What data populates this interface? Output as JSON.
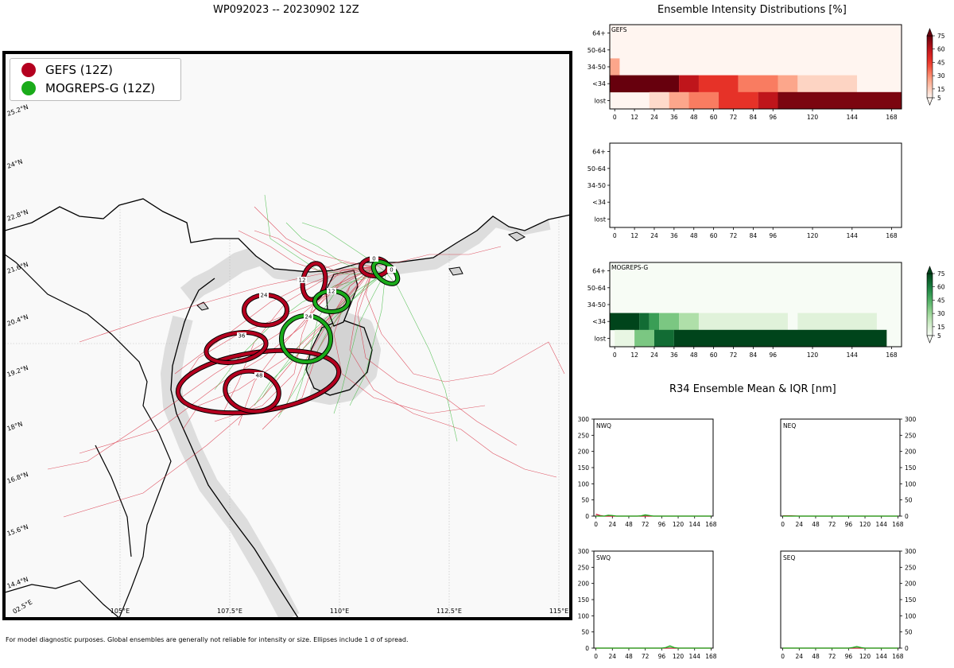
{
  "map": {
    "title": "WP092023 -- 20230902 12Z",
    "lon_labels": [
      "105°E",
      "107.5°E",
      "110°E",
      "112.5°E",
      "115°E"
    ],
    "lat_labels": [
      "25.2°N",
      "24°N",
      "22.8°N",
      "21.6°N",
      "20.4°N",
      "19.2°N",
      "18°N",
      "16.8°N",
      "15.6°N",
      "14.4°N",
      "02.5°E"
    ],
    "legend": [
      {
        "label": "GEFS (12Z)",
        "color": "#b4001f"
      },
      {
        "label": "MOGREPS-G (12Z)",
        "color": "#1aab1a"
      }
    ],
    "ellipse_labels": [
      {
        "text": "0",
        "color": "#b4001f"
      },
      {
        "text": "0",
        "color": "#1aab1a"
      },
      {
        "text": "12",
        "color": "#b4001f"
      },
      {
        "text": "12",
        "color": "#1aab1a"
      },
      {
        "text": "24",
        "color": "#b4001f"
      },
      {
        "text": "24",
        "color": "#1aab1a"
      },
      {
        "text": "36",
        "color": "#b4001f"
      },
      {
        "text": "48",
        "color": "#b4001f"
      }
    ],
    "footnote": "For model diagnostic purposes. Global ensembles are generally not reliable for intensity or size. Ellipses include 1 σ of spread."
  },
  "intensity": {
    "title": "Ensemble Intensity Distributions [%]",
    "rows": [
      "64+",
      "50-64",
      "34-50",
      "<34",
      "lost"
    ],
    "x_ticks": [
      0,
      12,
      24,
      36,
      48,
      60,
      72,
      84,
      96,
      120,
      144,
      168
    ],
    "colorbar_ticks": [
      75,
      60,
      45,
      30,
      15,
      5
    ],
    "panels": [
      {
        "label": "GEFS",
        "cmap": "reds",
        "cells": [
          {
            "row": "34-50",
            "t0": -3,
            "t1": 3,
            "v": 28
          },
          {
            "row": "<34",
            "t0": -3,
            "t1": 39,
            "v": 100
          },
          {
            "row": "<34",
            "t0": 39,
            "t1": 51,
            "v": 78
          },
          {
            "row": "<34",
            "t0": 51,
            "t1": 75,
            "v": 60
          },
          {
            "row": "<34",
            "t0": 75,
            "t1": 99,
            "v": 40
          },
          {
            "row": "<34",
            "t0": 99,
            "t1": 111,
            "v": 28
          },
          {
            "row": "<34",
            "t0": 111,
            "t1": 147,
            "v": 12
          },
          {
            "row": "lost",
            "t0": 21,
            "t1": 33,
            "v": 10
          },
          {
            "row": "lost",
            "t0": 33,
            "t1": 45,
            "v": 28
          },
          {
            "row": "lost",
            "t0": 45,
            "t1": 63,
            "v": 40
          },
          {
            "row": "lost",
            "t0": 63,
            "t1": 87,
            "v": 60
          },
          {
            "row": "lost",
            "t0": 87,
            "t1": 99,
            "v": 78
          },
          {
            "row": "lost",
            "t0": 99,
            "t1": 174,
            "v": 95
          }
        ]
      },
      {
        "label": "",
        "cmap": "none",
        "cells": []
      },
      {
        "label": "MOGREPS-G",
        "cmap": "greens",
        "cells": [
          {
            "row": "<34",
            "t0": -3,
            "t1": 15,
            "v": 100
          },
          {
            "row": "<34",
            "t0": 15,
            "t1": 21,
            "v": 85
          },
          {
            "row": "<34",
            "t0": 21,
            "t1": 27,
            "v": 65
          },
          {
            "row": "<34",
            "t0": 27,
            "t1": 39,
            "v": 45
          },
          {
            "row": "<34",
            "t0": 39,
            "t1": 51,
            "v": 30
          },
          {
            "row": "<34",
            "t0": 51,
            "t1": 105,
            "v": 12
          },
          {
            "row": "<34",
            "t0": 111,
            "t1": 159,
            "v": 12
          },
          {
            "row": "lost",
            "t0": 0,
            "t1": 12,
            "v": 8
          },
          {
            "row": "lost",
            "t0": 12,
            "t1": 24,
            "v": 45
          },
          {
            "row": "lost",
            "t0": 24,
            "t1": 36,
            "v": 85
          },
          {
            "row": "lost",
            "t0": 36,
            "t1": 165,
            "v": 100
          }
        ]
      }
    ]
  },
  "r34": {
    "title": "R34 Ensemble Mean & IQR [nm]",
    "y_ticks": [
      0,
      50,
      100,
      150,
      200,
      250,
      300
    ],
    "x_ticks": [
      0,
      24,
      48,
      72,
      96,
      120,
      144,
      168
    ],
    "ylim": [
      0,
      300
    ],
    "xlim": [
      -3,
      171
    ],
    "panels": [
      {
        "label": "NWQ",
        "side": "left",
        "red": [
          [
            0,
            6
          ],
          [
            6,
            2
          ],
          [
            12,
            0
          ],
          [
            24,
            0
          ],
          [
            36,
            0
          ],
          [
            48,
            0
          ],
          [
            60,
            0
          ],
          [
            72,
            0
          ],
          [
            84,
            0
          ],
          [
            96,
            0
          ],
          [
            108,
            0
          ],
          [
            120,
            0
          ],
          [
            132,
            0
          ],
          [
            144,
            0
          ],
          [
            156,
            0
          ],
          [
            168,
            0
          ]
        ],
        "green": [
          [
            0,
            0
          ],
          [
            12,
            0
          ],
          [
            18,
            3
          ],
          [
            24,
            2
          ],
          [
            30,
            0
          ],
          [
            60,
            0
          ],
          [
            66,
            1
          ],
          [
            72,
            4
          ],
          [
            78,
            2
          ],
          [
            84,
            0
          ],
          [
            96,
            0
          ],
          [
            120,
            0
          ],
          [
            144,
            0
          ],
          [
            168,
            0
          ]
        ]
      },
      {
        "label": "NEQ",
        "side": "right",
        "red": [
          [
            0,
            1
          ],
          [
            12,
            1
          ],
          [
            24,
            0
          ],
          [
            168,
            0
          ]
        ],
        "green": [
          [
            0,
            0
          ],
          [
            168,
            0
          ]
        ]
      },
      {
        "label": "SWQ",
        "side": "left",
        "red": [
          [
            0,
            0
          ],
          [
            168,
            0
          ]
        ],
        "green": [
          [
            0,
            0
          ],
          [
            96,
            0
          ],
          [
            102,
            2
          ],
          [
            108,
            7
          ],
          [
            114,
            2
          ],
          [
            120,
            0
          ],
          [
            168,
            0
          ]
        ]
      },
      {
        "label": "SEQ",
        "side": "right",
        "red": [
          [
            0,
            0
          ],
          [
            168,
            0
          ]
        ],
        "green": [
          [
            0,
            0
          ],
          [
            96,
            0
          ],
          [
            102,
            2
          ],
          [
            108,
            5
          ],
          [
            114,
            2
          ],
          [
            120,
            0
          ],
          [
            168,
            0
          ]
        ]
      }
    ]
  }
}
